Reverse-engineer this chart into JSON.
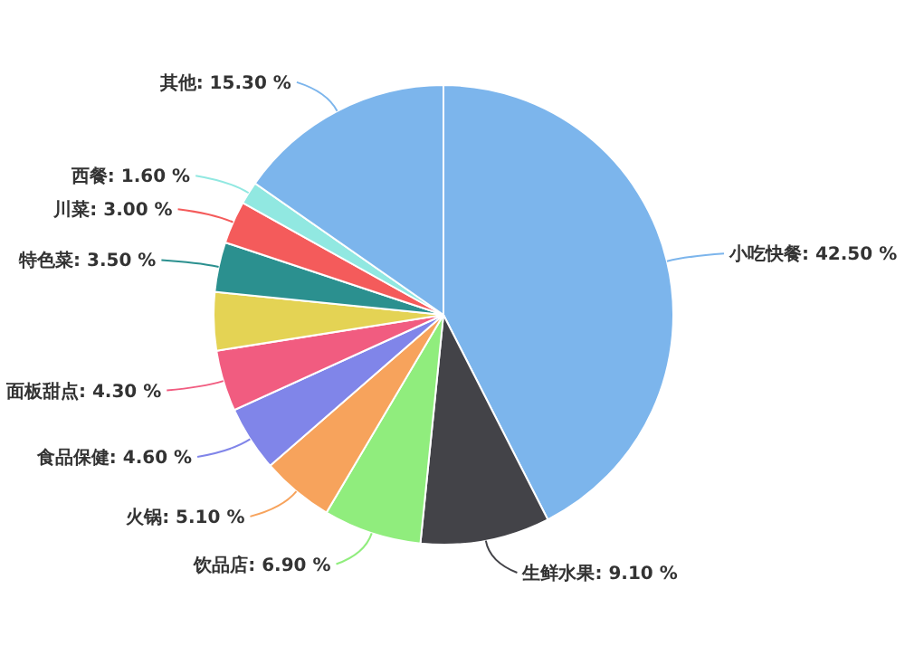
{
  "chart_data": {
    "type": "pie",
    "categories": [
      "小吃快餐",
      "生鲜水果",
      "饮品店",
      "火锅",
      "食品保健",
      "面板甜点",
      null,
      "特色菜",
      "川菜",
      "西餐",
      "其他"
    ],
    "values": [
      42.5,
      9.1,
      6.9,
      5.1,
      4.6,
      4.3,
      4.1,
      3.5,
      3.0,
      1.6,
      15.3
    ],
    "value_labels": [
      "42.50 %",
      "9.10 %",
      "6.90 %",
      "5.10 %",
      "4.60 %",
      "4.30 %",
      null,
      "3.50 %",
      "3.00 %",
      "1.60 %",
      "15.30 %"
    ],
    "colors": [
      "#7cb5ec",
      "#434348",
      "#90ed7d",
      "#f7a35c",
      "#8085e9",
      "#f15c80",
      "#e4d354",
      "#2b908f",
      "#f45b5b",
      "#91e8e1",
      "#7cb5ec"
    ]
  }
}
